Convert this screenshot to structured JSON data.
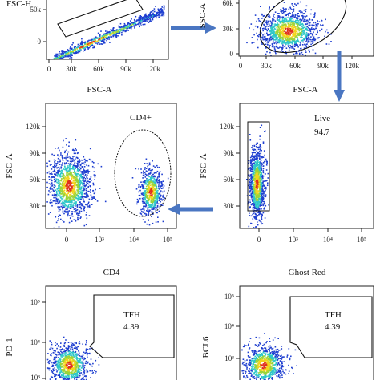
{
  "colors": {
    "low": "#1f3fd0",
    "mid": "#2ec7c9",
    "midhigh": "#9ad43a",
    "high": "#f2d41c",
    "peak": "#e0301c",
    "arrow": "#4a76c2",
    "gate": "#111111"
  },
  "chart_data": [
    {
      "type": "scatter",
      "id": "p1",
      "xlabel": "FSC-A",
      "ylabel": "FSC-H",
      "xticks": [
        "0",
        "30k",
        "60k",
        "90k",
        "120k"
      ],
      "yticks": [
        "0",
        "50k"
      ],
      "xlim": [
        0,
        140000
      ],
      "gates": [],
      "populations": [
        {
          "shape": "diagonal",
          "from": [
            8000,
            1000
          ],
          "to": [
            135000,
            95000
          ],
          "spread": 0.04,
          "n": 900
        }
      ]
    },
    {
      "type": "scatter",
      "id": "p2",
      "xlabel": "FSC-A",
      "ylabel": "SSC-A",
      "xticks": [
        "0",
        "30k",
        "60k",
        "90k",
        "120k"
      ],
      "yticks": [
        "0",
        "30k",
        "60k"
      ],
      "xlim": [
        0,
        140000
      ],
      "gates": [],
      "populations": [
        {
          "shape": "blob",
          "cx": 55000,
          "cy": 30000,
          "sx": 16000,
          "sy": 12000,
          "n": 1200
        }
      ]
    },
    {
      "type": "scatter",
      "id": "p3",
      "xlabel": "CD4",
      "ylabel": "FSC-A",
      "xticks": [
        "0",
        "10³",
        "10⁴",
        "10⁵"
      ],
      "yticks": [
        "30k",
        "60k",
        "90k",
        "120k"
      ],
      "gates": [
        {
          "label": "CD4+",
          "value": ""
        }
      ],
      "populations": [
        {
          "shape": "blob",
          "cx": 0,
          "cy": 58000,
          "sx": 0.55,
          "sy": 16000,
          "n": 1300
        },
        {
          "shape": "blob",
          "cx": 4.25,
          "cy": 52000,
          "sx": 0.3,
          "sy": 12000,
          "n": 650
        }
      ]
    },
    {
      "type": "scatter",
      "id": "p4",
      "xlabel": "Ghost Red",
      "ylabel": "FSC-A",
      "xticks": [
        "0",
        "10³",
        "10⁴",
        "10⁵"
      ],
      "yticks": [
        "30k",
        "60k",
        "90k",
        "120k"
      ],
      "gates": [
        {
          "label": "Live",
          "value": "94.7"
        }
      ],
      "populations": [
        {
          "shape": "blob",
          "cx": 0,
          "cy": 60000,
          "sx": 0.18,
          "sy": 18000,
          "n": 1100
        }
      ]
    },
    {
      "type": "scatter",
      "id": "p5",
      "xlabel": "",
      "ylabel": "PD-1",
      "xticks": [],
      "yticks": [
        "10⁵",
        "10⁴",
        "10³"
      ],
      "gates": [
        {
          "label": "TFH",
          "value": "4.39"
        }
      ],
      "populations": [
        {
          "shape": "blob",
          "cx": 0,
          "cy": 2.7,
          "sx": 0.5,
          "sy": 0.35,
          "n": 900
        }
      ]
    },
    {
      "type": "scatter",
      "id": "p6",
      "xlabel": "",
      "ylabel": "BCL6",
      "xticks": [],
      "yticks": [
        "10⁵",
        "10⁴",
        "10³"
      ],
      "gates": [
        {
          "label": "TFH",
          "value": "4.39"
        }
      ],
      "populations": [
        {
          "shape": "blob",
          "cx": 0,
          "cy": 2.7,
          "sx": 0.5,
          "sy": 0.35,
          "n": 900
        }
      ]
    }
  ]
}
